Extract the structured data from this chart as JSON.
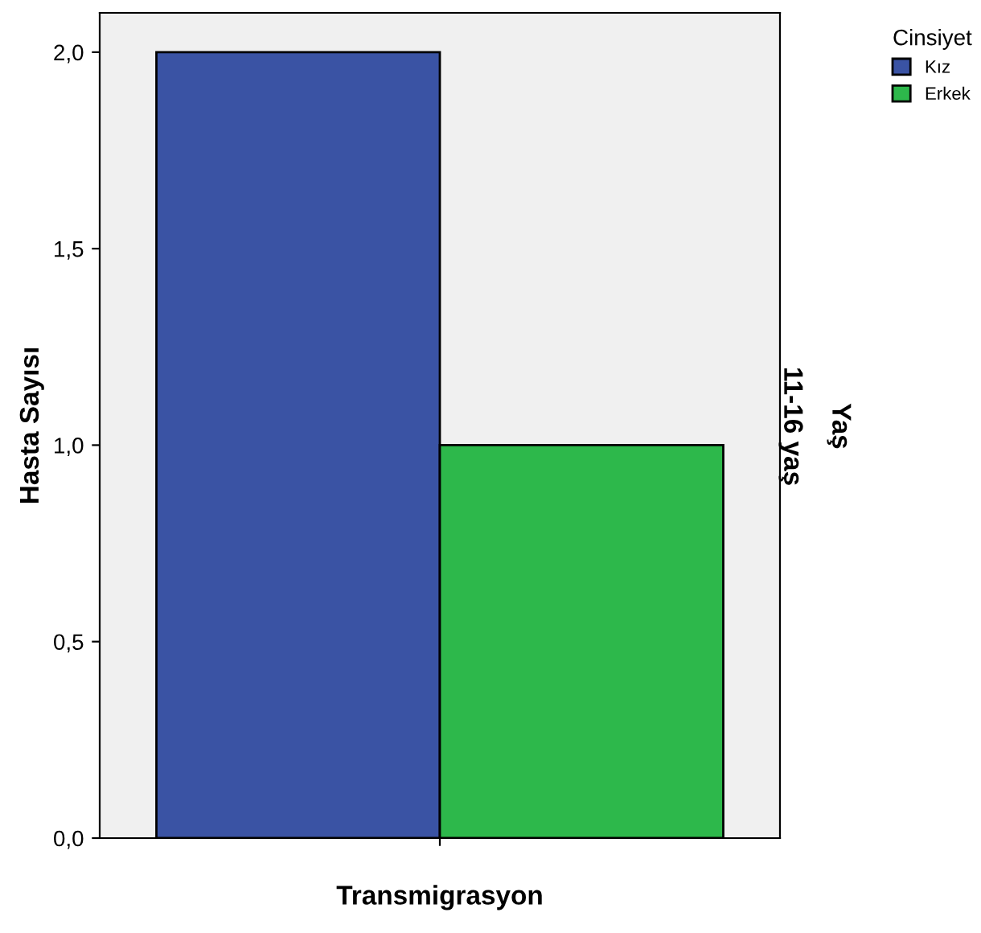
{
  "chart_data": {
    "type": "bar",
    "xlabel": "Transmigrasyon",
    "ylabel": "Hasta Sayısı",
    "y2label": "Yaş",
    "legend_title": "Cinsiyet",
    "annotations": [
      "11-16 yaş"
    ],
    "categories": [
      null
    ],
    "series": [
      {
        "name": "Kız",
        "color": "#3a53a4",
        "values": [
          2
        ]
      },
      {
        "name": "Erkek",
        "color": "#2db84b",
        "values": [
          1
        ]
      }
    ],
    "ylim": [
      0,
      2.1
    ],
    "yticks": [
      {
        "value": 0,
        "label": "0,0"
      },
      {
        "value": 0.5,
        "label": "0,5"
      },
      {
        "value": 1,
        "label": "1,0"
      },
      {
        "value": 1.5,
        "label": "1,5"
      },
      {
        "value": 2,
        "label": "2,0"
      }
    ],
    "grid": false,
    "legend": "top right"
  }
}
